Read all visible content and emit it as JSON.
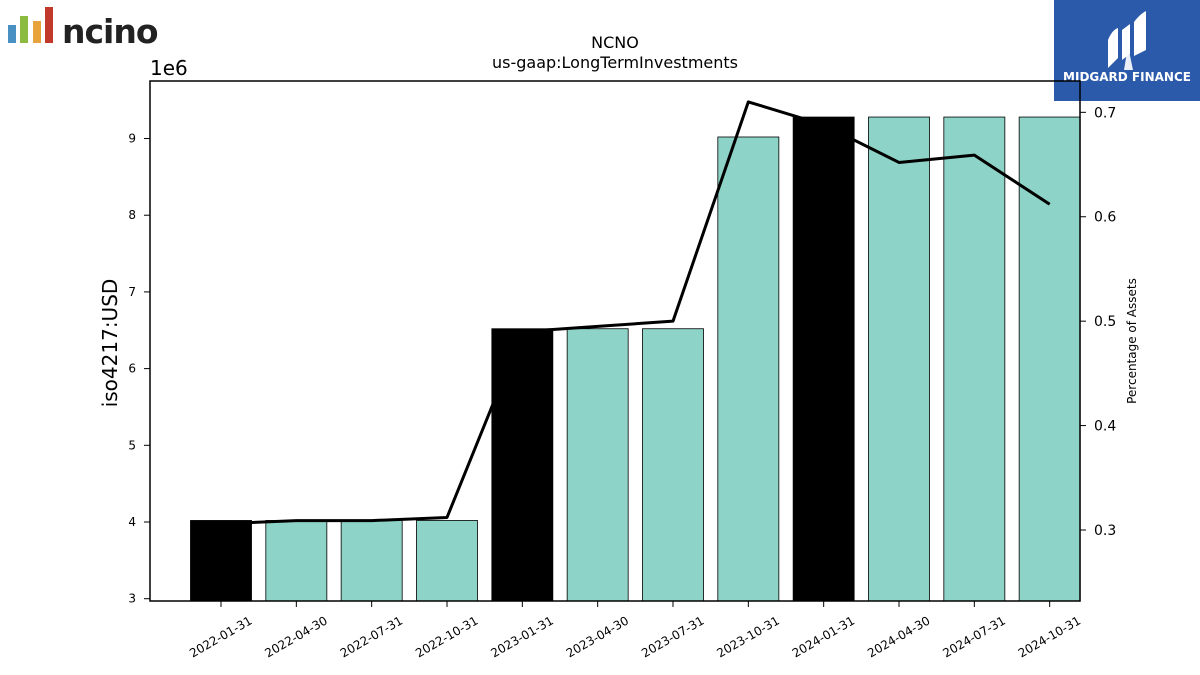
{
  "logos": {
    "left_wordmark": "ncino",
    "left_bar_colors": [
      "#4a90c2",
      "#8dbb3f",
      "#e8a33d",
      "#c0392b"
    ],
    "right_badge_text": "MIDGARD FINANCE",
    "right_badge_color": "#2b5aab"
  },
  "chart_data": {
    "type": "bar",
    "title": "NCNO",
    "subtitle": "us-gaap:LongTermInvestments",
    "ylabel": "iso4217:USD",
    "y_offset_label": "1e6",
    "y2label": "Percentage of Assets",
    "categories": [
      "2022-01-31",
      "2022-04-30",
      "2022-07-31",
      "2022-10-31",
      "2023-01-31",
      "2023-04-30",
      "2023-07-31",
      "2023-10-31",
      "2024-01-31",
      "2024-04-30",
      "2024-07-31",
      "2024-10-31"
    ],
    "values": [
      4020000,
      4020000,
      4020000,
      4020000,
      6520000,
      6520000,
      6520000,
      9020000,
      9280000,
      9280000,
      9280000,
      9280000
    ],
    "annual_periods": [
      true,
      false,
      false,
      false,
      true,
      false,
      false,
      false,
      true,
      false,
      false,
      false
    ],
    "bar_color": "#8dd3c7",
    "annual_bar_color": "#000000",
    "ylim": [
      2970000,
      9750000
    ],
    "yticks": [
      3,
      4,
      5,
      6,
      7,
      8,
      9
    ],
    "line_series": {
      "name": "Percentage of Assets",
      "values": [
        0.306,
        0.309,
        0.309,
        0.312,
        0.49,
        0.495,
        0.5,
        0.71,
        0.688,
        0.652,
        0.659,
        0.612
      ],
      "color": "#000000"
    },
    "y2lim": [
      0.232,
      0.73
    ],
    "y2ticks": [
      "0.3",
      "0.4",
      "0.5",
      "0.6",
      "0.7"
    ],
    "grid": false,
    "legend": "none"
  }
}
